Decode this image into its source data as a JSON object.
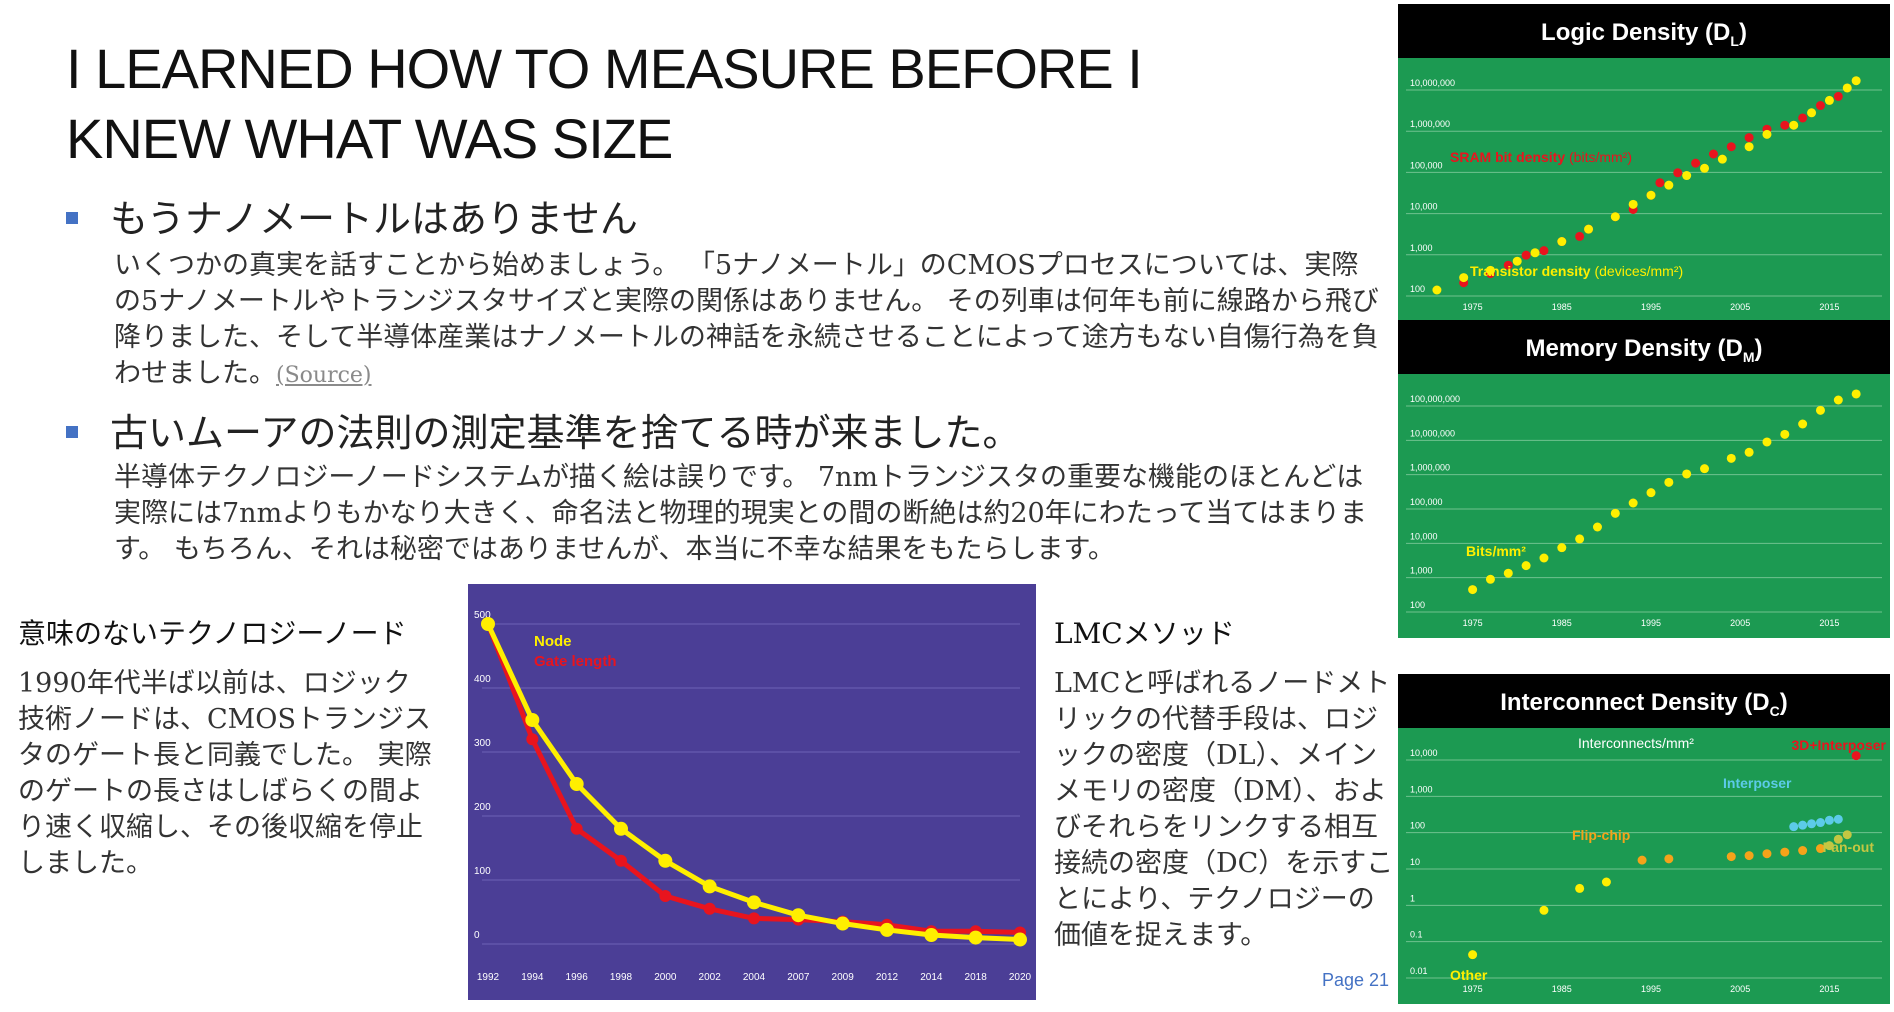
{
  "title_line1": "I LEARNED HOW TO MEASURE BEFORE I",
  "title_line2": "KNEW WHAT WAS SIZE",
  "bullets": [
    {
      "heading": "もうナノメートルはありません",
      "text": "いくつかの真実を話すことから始めましょう。 「5ナノメートル」のCMOSプロセスについては、実際の5ナノメートルやトランジスタサイズと実際の関係はありません。 その列車は何年も前に線路から飛び降りました、そして半導体産業はナノメートルの神話を永続させることによって途方もない自傷行為を負わせました。",
      "link": "(Source)"
    },
    {
      "heading": "古いムーアの法則の測定基準を捨てる時が来ました。",
      "text": "半導体テクノロジーノードシステムが描く絵は誤りです。 7nmトランジスタの重要な機能のほとんどは実際には7nmよりもかなり大きく、命名法と物理的現実との間の断絶は約20年にわたって当てはまります。 もちろん、それは秘密ではありませんが、本当に不幸な結果をもたらします。"
    }
  ],
  "left_col": {
    "heading": "意味のないテクノロジーノード",
    "text": "1990年代半ば以前は、ロジック技術ノードは、CMOSトランジスタのゲート長と同義でした。 実際のゲートの長さはしばらくの間より速く収縮し、その後収縮を停止しました。"
  },
  "right_col": {
    "heading": "LMCメソッド",
    "text": "LMCと呼ばれるノードメトリックの代替手段は、ロジックの密度（DL）、メインメモリの密度（DM）、およびそれらをリンクする相互接続の密度（DC）を示すことにより、テクノロジーの価値を捉えます。"
  },
  "page_number": "Page 21",
  "colors": {
    "accent": "#4472c4",
    "chart_bg": "#4b3e96",
    "node": "#ffef00",
    "gate": "#e8141e",
    "density_bg": "#1c9a52",
    "header_bg": "#000000"
  },
  "chart_data": [
    {
      "type": "line",
      "x": [
        1992,
        1994,
        1996,
        1998,
        2000,
        2002,
        2004,
        2007,
        2009,
        2012,
        2014,
        2018,
        2020
      ],
      "xticks": [
        "1992",
        "1994",
        "1996",
        "1998",
        "2000",
        "2002",
        "2004",
        "2007",
        "2009",
        "2012",
        "2014",
        "2018",
        "2020"
      ],
      "yticks": [
        "0",
        "100",
        "200",
        "300",
        "400",
        "500"
      ],
      "ylim": [
        0,
        500
      ],
      "series": [
        {
          "name": "Node",
          "color": "#ffef00",
          "values": [
            500,
            350,
            250,
            180,
            130,
            90,
            65,
            45,
            32,
            22,
            14,
            10,
            7
          ]
        },
        {
          "name": "Gate length",
          "color": "#e8141e",
          "values": [
            500,
            320,
            180,
            130,
            75,
            55,
            40,
            38,
            35,
            30,
            20,
            20,
            18
          ]
        }
      ]
    },
    {
      "type": "scatter",
      "title_a": "Logic Density (D",
      "title_sub": "L",
      "title_b": ")",
      "xticks": [
        "1975",
        "1985",
        "1995",
        "2005",
        "2015"
      ],
      "yticks": [
        "10,000,000",
        "1,000,000",
        "100,000",
        "10,000",
        "1,000",
        "100"
      ],
      "ylog": [
        100,
        10000000
      ],
      "series": [
        {
          "name": "SRAM bit density",
          "unit": "(bits/mm²)",
          "color": "#e8141e",
          "points": [
            [
              1974,
              150
            ],
            [
              1977,
              250
            ],
            [
              1979,
              400
            ],
            [
              1981,
              700
            ],
            [
              1983,
              900
            ],
            [
              1985,
              1500
            ],
            [
              1987,
              2000
            ],
            [
              1988,
              3000
            ],
            [
              1991,
              6000
            ],
            [
              1993,
              9000
            ],
            [
              1995,
              20000
            ],
            [
              1996,
              40000
            ],
            [
              1998,
              70000
            ],
            [
              2000,
              120000
            ],
            [
              2002,
              200000
            ],
            [
              2004,
              300000
            ],
            [
              2006,
              500000
            ],
            [
              2008,
              800000
            ],
            [
              2010,
              1000000
            ],
            [
              2012,
              1500000
            ],
            [
              2014,
              3000000
            ],
            [
              2016,
              5000000
            ]
          ]
        },
        {
          "name": "Transistor density",
          "unit": "(devices/mm²)",
          "color": "#ffef00",
          "points": [
            [
              1971,
              100
            ],
            [
              1974,
              200
            ],
            [
              1977,
              300
            ],
            [
              1980,
              500
            ],
            [
              1982,
              800
            ],
            [
              1985,
              1500
            ],
            [
              1988,
              3000
            ],
            [
              1991,
              6000
            ],
            [
              1993,
              12000
            ],
            [
              1995,
              20000
            ],
            [
              1997,
              35000
            ],
            [
              1999,
              60000
            ],
            [
              2001,
              90000
            ],
            [
              2003,
              150000
            ],
            [
              2006,
              300000
            ],
            [
              2008,
              600000
            ],
            [
              2011,
              1000000
            ],
            [
              2013,
              2000000
            ],
            [
              2015,
              4000000
            ],
            [
              2017,
              8000000
            ],
            [
              2018,
              12000000
            ]
          ]
        }
      ]
    },
    {
      "type": "scatter",
      "title_a": "Memory Density (D",
      "title_sub": "M",
      "title_b": ")",
      "xticks": [
        "1975",
        "1985",
        "1995",
        "2005",
        "2015"
      ],
      "yticks": [
        "100,000,000",
        "10,000,000",
        "1,000,000",
        "100,000",
        "10,000",
        "1,000",
        "100"
      ],
      "ylog": [
        100,
        100000000
      ],
      "series": [
        {
          "name": "Bits/mm²",
          "unit": "",
          "color": "#ffef00",
          "points": [
            [
              1975,
              300
            ],
            [
              1977,
              600
            ],
            [
              1979,
              900
            ],
            [
              1981,
              1500
            ],
            [
              1983,
              2500
            ],
            [
              1985,
              5000
            ],
            [
              1987,
              9000
            ],
            [
              1989,
              20000
            ],
            [
              1991,
              50000
            ],
            [
              1993,
              100000
            ],
            [
              1995,
              200000
            ],
            [
              1997,
              400000
            ],
            [
              1999,
              700000
            ],
            [
              2001,
              1000000
            ],
            [
              2004,
              2000000
            ],
            [
              2006,
              3000000
            ],
            [
              2008,
              6000000
            ],
            [
              2010,
              10000000
            ],
            [
              2012,
              20000000
            ],
            [
              2014,
              50000000
            ],
            [
              2016,
              100000000
            ],
            [
              2018,
              150000000
            ]
          ]
        }
      ]
    },
    {
      "type": "scatter",
      "title_a": "Interconnect Density (D",
      "title_sub": "C",
      "title_b": ")",
      "xticks": [
        "1975",
        "1985",
        "1995",
        "2005",
        "2015"
      ],
      "yticks": [
        "10,000",
        "1,000",
        "100",
        "10",
        "1",
        "0.1",
        "0.01"
      ],
      "ylog": [
        0.01,
        10000
      ],
      "label_top": "Interconnects/mm²",
      "series": [
        {
          "name": "Other",
          "unit": "",
          "color": "#ffef00",
          "points": [
            [
              1975,
              0.03
            ],
            [
              1983,
              0.5
            ],
            [
              1987,
              2
            ],
            [
              1990,
              3
            ]
          ]
        },
        {
          "name": "Flip-chip",
          "unit": "",
          "color": "#f5a31a",
          "points": [
            [
              1994,
              12
            ],
            [
              1997,
              13
            ],
            [
              2004,
              15
            ],
            [
              2006,
              16
            ],
            [
              2008,
              18
            ],
            [
              2010,
              20
            ],
            [
              2012,
              22
            ],
            [
              2014,
              25
            ]
          ]
        },
        {
          "name": "Interposer",
          "unit": "",
          "color": "#5ccbe8",
          "points": [
            [
              2011,
              100
            ],
            [
              2012,
              110
            ],
            [
              2013,
              120
            ],
            [
              2014,
              130
            ],
            [
              2015,
              150
            ],
            [
              2016,
              160
            ]
          ]
        },
        {
          "name": "Fan-out",
          "unit": "",
          "color": "#c4c742",
          "points": [
            [
              2015,
              30
            ],
            [
              2016,
              45
            ],
            [
              2017,
              60
            ]
          ]
        },
        {
          "name": "3D+Interposer",
          "unit": "",
          "color": "#e8141e",
          "points": [
            [
              2018,
              9000
            ]
          ]
        }
      ]
    }
  ]
}
